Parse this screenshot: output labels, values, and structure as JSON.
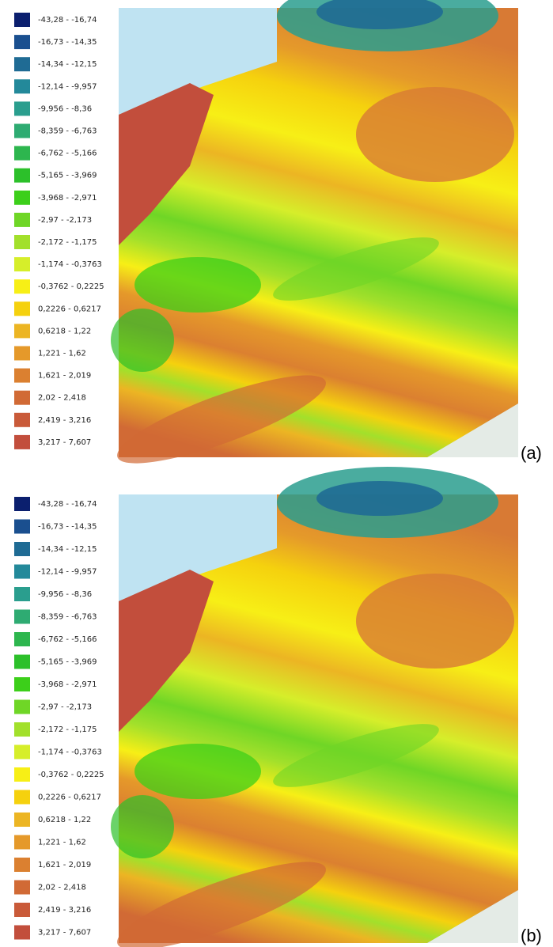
{
  "panels": [
    {
      "label": "(a)",
      "legend": [
        {
          "label": "-43,28 - -16,74",
          "color": "#0b1f6e"
        },
        {
          "label": "-16,73 - -14,35",
          "color": "#1a4f8f"
        },
        {
          "label": "-14,34 - -12,15",
          "color": "#1f6b94"
        },
        {
          "label": "-12,14 - -9,957",
          "color": "#23899a"
        },
        {
          "label": "-9,956 - -8,36",
          "color": "#2a9e8e"
        },
        {
          "label": "-8,359 - -6,763",
          "color": "#2eab72"
        },
        {
          "label": "-6,762 - -5,166",
          "color": "#2db64e"
        },
        {
          "label": "-5,165 - -3,969",
          "color": "#2cc02a"
        },
        {
          "label": "-3,968 - -2,971",
          "color": "#3ccf1a"
        },
        {
          "label": "-2,97 - -2,173",
          "color": "#6fd626"
        },
        {
          "label": "-2,172 - -1,175",
          "color": "#a2e02b"
        },
        {
          "label": "-1,174 - -0,3763",
          "color": "#d6ee2a"
        },
        {
          "label": "-0,3762 - 0,2225",
          "color": "#f7ef16"
        },
        {
          "label": "0,2226 - 0,6217",
          "color": "#f5d10e"
        },
        {
          "label": "0,6218 - 1,22",
          "color": "#ecb523"
        },
        {
          "label": "1,221 - 1,62",
          "color": "#e5992a"
        },
        {
          "label": "1,621 - 2,019",
          "color": "#db8030"
        },
        {
          "label": "2,02 - 2,418",
          "color": "#d16a35"
        },
        {
          "label": "2,419 - 3,216",
          "color": "#c95a39"
        },
        {
          "label": "3,217 - 7,607",
          "color": "#c24e3c"
        }
      ]
    },
    {
      "label": "(b)",
      "legend": [
        {
          "label": "-43,28 - -16,74",
          "color": "#0b1f6e"
        },
        {
          "label": "-16,73 - -14,35",
          "color": "#1a4f8f"
        },
        {
          "label": "-14,34 - -12,15",
          "color": "#1f6b94"
        },
        {
          "label": "-12,14 - -9,957",
          "color": "#23899a"
        },
        {
          "label": "-9,956 - -8,36",
          "color": "#2a9e8e"
        },
        {
          "label": "-8,359 - -6,763",
          "color": "#2eab72"
        },
        {
          "label": "-6,762 - -5,166",
          "color": "#2db64e"
        },
        {
          "label": "-5,165 - -3,969",
          "color": "#2cc02a"
        },
        {
          "label": "-3,968 - -2,971",
          "color": "#3ccf1a"
        },
        {
          "label": "-2,97 - -2,173",
          "color": "#6fd626"
        },
        {
          "label": "-2,172 - -1,175",
          "color": "#a2e02b"
        },
        {
          "label": "-1,174 - -0,3763",
          "color": "#d6ee2a"
        },
        {
          "label": "-0,3762 - 0,2225",
          "color": "#f7ef16"
        },
        {
          "label": "0,2226 - 0,6217",
          "color": "#f5d10e"
        },
        {
          "label": "0,6218 - 1,22",
          "color": "#ecb523"
        },
        {
          "label": "1,221 - 1,62",
          "color": "#e5992a"
        },
        {
          "label": "1,621 - 2,019",
          "color": "#db8030"
        },
        {
          "label": "2,02 - 2,418",
          "color": "#d16a35"
        },
        {
          "label": "2,419 - 3,216",
          "color": "#c95a39"
        },
        {
          "label": "3,217 - 7,607",
          "color": "#c24e3c"
        }
      ]
    }
  ]
}
